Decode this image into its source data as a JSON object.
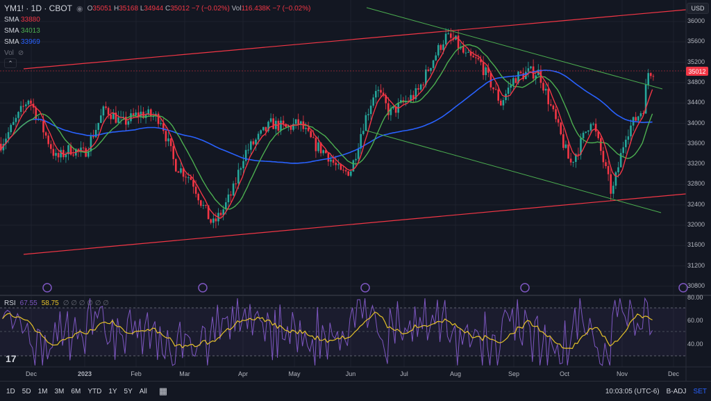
{
  "legend": {
    "symbol": "YM1! · 1D · CBOT",
    "open_label": "O",
    "open": "35051",
    "high_label": "H",
    "high": "35168",
    "low_label": "L",
    "low": "34944",
    "close_label": "C",
    "close": "35012",
    "change": "−7 (−0.02%)",
    "vol_label": "Vol",
    "vol": "116.438K",
    "vol_change": "−7 (−0.02%)",
    "sma": [
      {
        "label": "SMA",
        "value": "33880",
        "color": "#f23645"
      },
      {
        "label": "SMA",
        "value": "34013",
        "color": "#4caf50"
      },
      {
        "label": "SMA",
        "value": "33969",
        "color": "#2962ff"
      }
    ],
    "vol_row": "Vol"
  },
  "currency": "USD",
  "price_axis": [
    "36000",
    "35600",
    "35200",
    "34800",
    "34400",
    "34000",
    "33600",
    "33200",
    "32800",
    "32400",
    "32000",
    "31600",
    "31200",
    "30800"
  ],
  "last_price": "35012",
  "rsi": {
    "label": "RSI",
    "value1": "67.55",
    "value1_color": "#7e57c2",
    "value2": "58.75",
    "value2_color": "#e6c229",
    "extra": "∅ ∅ ∅ ∅ ∅ ∅",
    "axis": [
      "80.00",
      "60.00",
      "40.00"
    ]
  },
  "time_axis": [
    {
      "label": "Dec"
    },
    {
      "label": "2023"
    },
    {
      "label": "Feb"
    },
    {
      "label": "Mar"
    },
    {
      "label": "Apr"
    },
    {
      "label": "May"
    },
    {
      "label": "Jun"
    },
    {
      "label": "Jul"
    },
    {
      "label": "Aug"
    },
    {
      "label": "Sep"
    },
    {
      "label": "Oct"
    },
    {
      "label": "Nov"
    },
    {
      "label": "Dec"
    }
  ],
  "toolbar": {
    "timeframes": [
      "1D",
      "5D",
      "1M",
      "3M",
      "6M",
      "YTD",
      "1Y",
      "5Y",
      "All"
    ],
    "calendar_icon": "calendar-icon",
    "time": "10:03:05 (UTC-6)",
    "badj": "B-ADJ",
    "set": "SET"
  },
  "colors": {
    "up": "#26a69a",
    "down": "#f23645",
    "sma_fast": "#f23645",
    "sma_mid": "#4caf50",
    "sma_slow": "#2962ff",
    "channel": "#f23645",
    "trend": "#4caf50"
  }
}
